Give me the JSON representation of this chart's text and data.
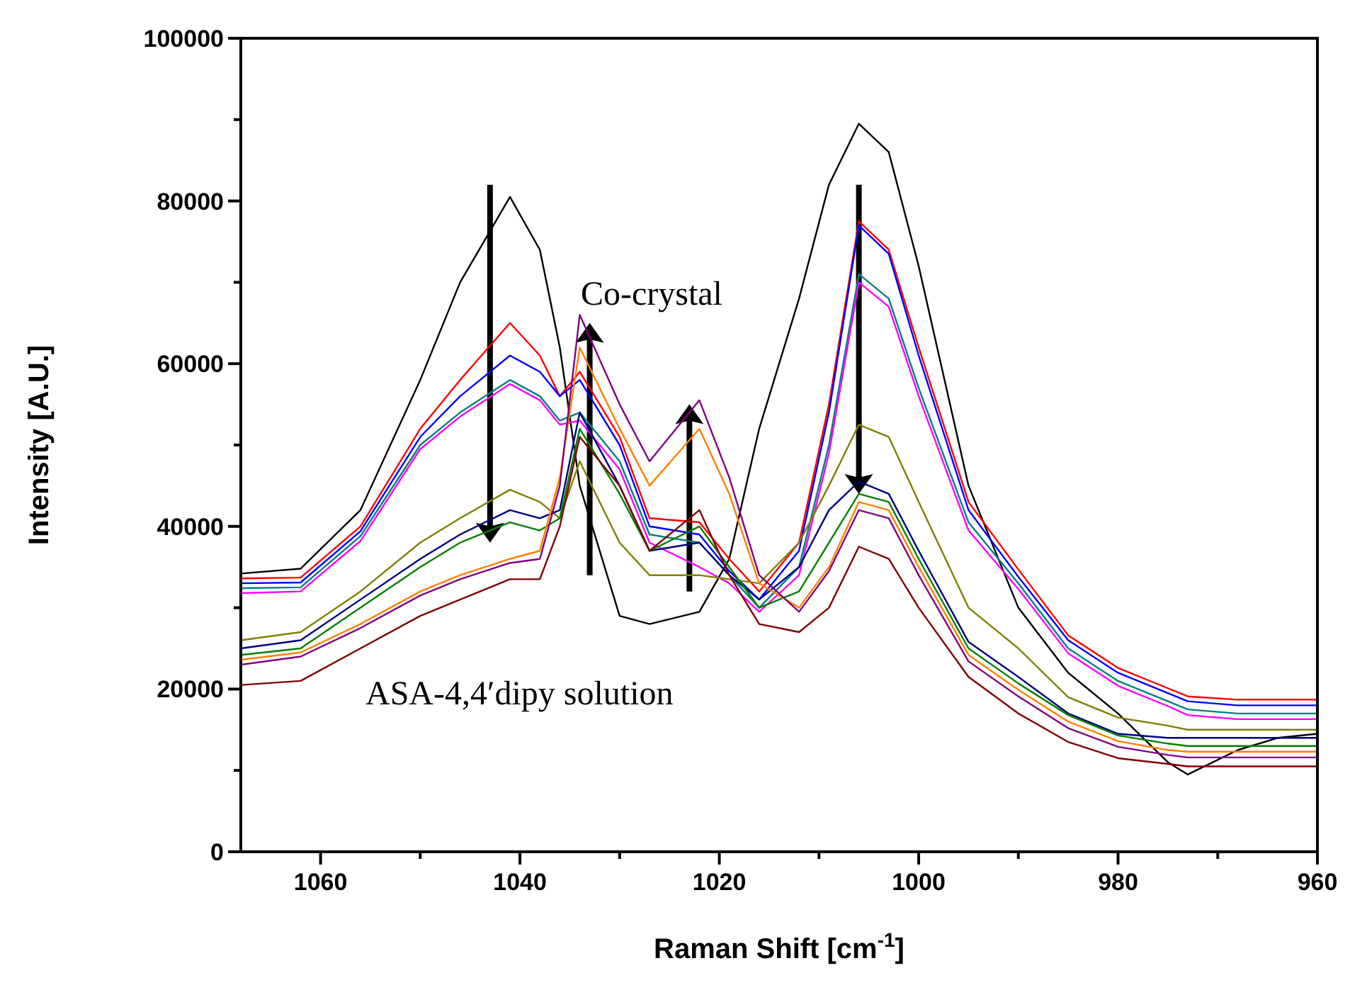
{
  "chart_data": {
    "type": "line",
    "xlabel": "Raman Shift [cm$^{-1}$]",
    "ylabel": "Intensity [A.U.]",
    "xlim": [
      1068,
      960
    ],
    "ylim": [
      0,
      100000
    ],
    "xticks": [
      {
        "value": 1060,
        "label": "1060"
      },
      {
        "value": 1050,
        "label": null
      },
      {
        "value": 1040,
        "label": "1040"
      },
      {
        "value": 1030,
        "label": null
      },
      {
        "value": 1020,
        "label": "1020"
      },
      {
        "value": 1010,
        "label": null
      },
      {
        "value": 1000,
        "label": "1000"
      },
      {
        "value": 990,
        "label": null
      },
      {
        "value": 980,
        "label": "980"
      },
      {
        "value": 970,
        "label": null
      },
      {
        "value": 960,
        "label": "960"
      }
    ],
    "yticks": [
      0,
      {
        "value": 10000,
        "label": null
      },
      20000,
      {
        "value": 30000,
        "label": null
      },
      40000,
      {
        "value": 50000,
        "label": null
      },
      60000,
      {
        "value": 70000,
        "label": null
      },
      80000,
      {
        "value": 90000,
        "label": null
      },
      100000
    ],
    "grid": false,
    "marker": "none",
    "line_style": "solid",
    "x": [
      1068,
      1062,
      1056,
      1050,
      1046,
      1041,
      1038,
      1036,
      1034,
      1030,
      1027,
      1022,
      1019,
      1016,
      1012,
      1009,
      1006,
      1003,
      1000,
      995,
      990,
      985,
      980,
      975,
      973,
      968,
      964,
      960
    ],
    "annotations": [
      "Co-crystal",
      "ASA-4,4′dipy solution"
    ],
    "series": [
      {
        "color": "#000000",
        "values": [
          34200,
          34800,
          42000,
          58000,
          70000,
          80500,
          74000,
          62000,
          45000,
          29000,
          28000,
          29500,
          36000,
          52000,
          68000,
          82000,
          89500,
          86000,
          72000,
          45000,
          30000,
          22000,
          17000,
          11000,
          9500,
          12500,
          14000,
          14500
        ]
      },
      {
        "color": "#ff0000",
        "values": [
          33600,
          33700,
          40000,
          52000,
          58000,
          65000,
          61000,
          56000,
          59000,
          51000,
          41000,
          40500,
          36000,
          32000,
          38000,
          55000,
          77500,
          74000,
          62000,
          43000,
          34700,
          26600,
          22600,
          20100,
          19100,
          18700,
          18700,
          18700
        ]
      },
      {
        "color": "#0000ff",
        "values": [
          33000,
          33100,
          39400,
          51000,
          56000,
          61000,
          59000,
          56000,
          58000,
          50000,
          40000,
          39000,
          34500,
          31000,
          37000,
          54000,
          77000,
          73500,
          61000,
          42000,
          33800,
          26000,
          22000,
          19500,
          18500,
          18000,
          18000,
          18000
        ]
      },
      {
        "color": "#008080",
        "values": [
          32400,
          32500,
          38800,
          50000,
          54000,
          58000,
          56000,
          53000,
          54000,
          48000,
          39000,
          38000,
          34000,
          30000,
          35000,
          50000,
          71000,
          68000,
          57000,
          40500,
          33000,
          25000,
          21000,
          18500,
          17500,
          17000,
          17000,
          17000
        ]
      },
      {
        "color": "#ff00ff",
        "values": [
          31800,
          32000,
          38200,
          49500,
          53500,
          57500,
          55500,
          52500,
          53000,
          47000,
          38000,
          35000,
          33000,
          29500,
          34000,
          49000,
          70000,
          67000,
          56000,
          39500,
          32300,
          24400,
          20400,
          17900,
          16800,
          16300,
          16300,
          16300
        ]
      },
      {
        "color": "#808000",
        "values": [
          26000,
          27000,
          32000,
          38000,
          41000,
          44500,
          43000,
          41000,
          48000,
          38000,
          34000,
          34000,
          33500,
          33000,
          38000,
          45000,
          52500,
          51000,
          43000,
          30000,
          25000,
          19000,
          16500,
          15500,
          15000,
          15000,
          15000,
          15000
        ]
      },
      {
        "color": "#000080",
        "values": [
          25000,
          26000,
          31000,
          36000,
          39000,
          42000,
          41000,
          42000,
          54000,
          45000,
          37000,
          38000,
          34000,
          31000,
          35000,
          42000,
          45500,
          44000,
          37000,
          25800,
          21500,
          17000,
          14500,
          14000,
          14000,
          14000,
          14000,
          14000
        ]
      },
      {
        "color": "#008000",
        "values": [
          24200,
          25000,
          30000,
          35000,
          38000,
          40500,
          39500,
          41000,
          52000,
          44000,
          37000,
          40000,
          35000,
          30000,
          32000,
          38000,
          44000,
          43000,
          36000,
          25000,
          20700,
          16800,
          14300,
          13300,
          13000,
          13000,
          13000,
          13000
        ]
      },
      {
        "color": "#ff8000",
        "values": [
          23600,
          24500,
          28000,
          32000,
          34000,
          36000,
          37000,
          46000,
          62000,
          52000,
          45000,
          52000,
          44000,
          33000,
          30000,
          35000,
          43000,
          42000,
          35000,
          24200,
          19900,
          16000,
          13600,
          12500,
          12300,
          12300,
          12300,
          12300
        ]
      },
      {
        "color": "#800080",
        "values": [
          23000,
          24000,
          27500,
          31500,
          33500,
          35500,
          36000,
          45000,
          66000,
          55000,
          48000,
          55500,
          46000,
          34000,
          29500,
          34500,
          42000,
          41000,
          34000,
          23400,
          19100,
          15200,
          12900,
          11900,
          11600,
          11600,
          11600,
          11600
        ]
      },
      {
        "color": "#800000",
        "values": [
          20500,
          21000,
          25000,
          29000,
          31000,
          33500,
          33500,
          40000,
          51000,
          45000,
          37000,
          42000,
          34000,
          28000,
          27000,
          30000,
          37500,
          36000,
          30000,
          21500,
          17000,
          13500,
          11500,
          10800,
          10500,
          10500,
          10500,
          10500
        ]
      }
    ]
  }
}
